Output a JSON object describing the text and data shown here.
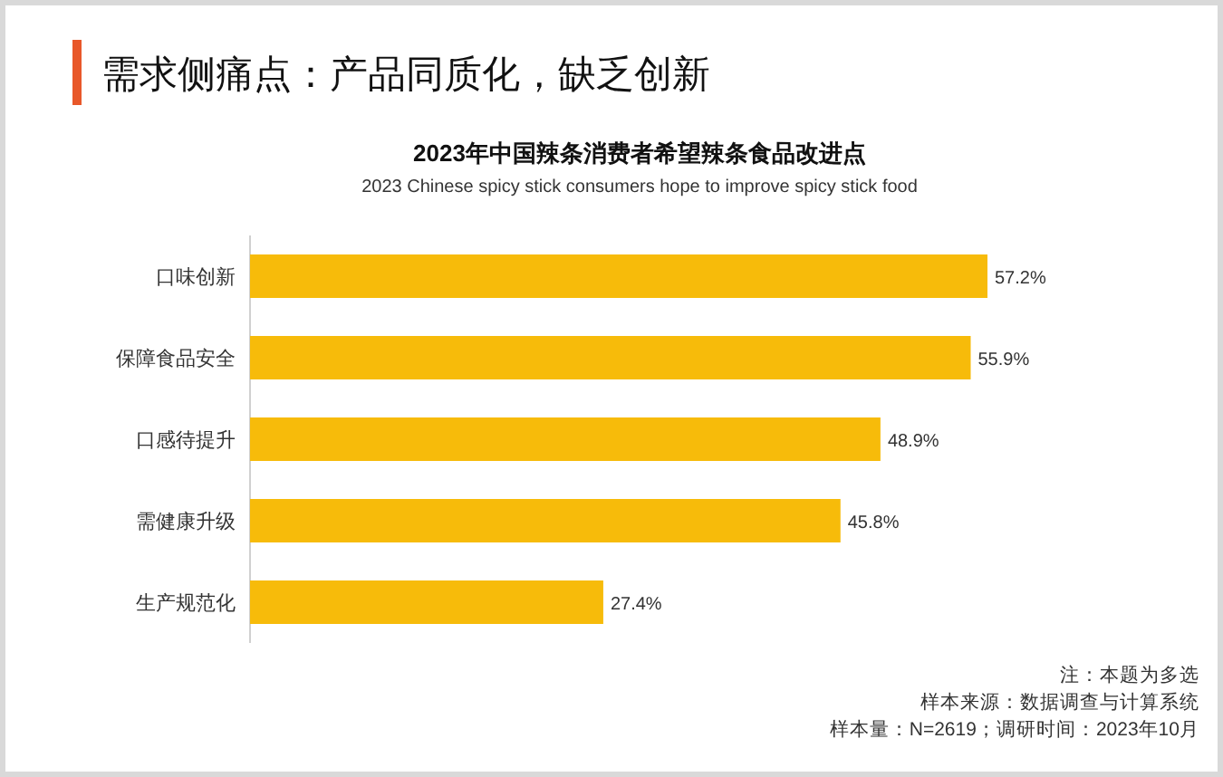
{
  "chart_data": {
    "type": "bar",
    "orientation": "horizontal",
    "title": "需求侧痛点：产品同质化，缺乏创新",
    "subtitle": "2023年中国辣条消费者希望辣条食品改进点",
    "categories": [
      "口味创新",
      "保障食品安全",
      "口感待提升",
      "需健康升级",
      "生产规范化"
    ],
    "values": [
      57.2,
      55.9,
      48.9,
      45.8,
      27.4
    ],
    "value_labels": [
      "57.2%",
      "55.9%",
      "48.9%",
      "45.8%",
      "27.4%"
    ],
    "color": "#f7bb0a",
    "annotations": [
      "2023 Chinese spicy stick consumers hope to improve spicy stick food",
      "注：本题为多选",
      "样本来源：数据调查与计算系统",
      "样本量：N=2619；调研时间：2023年10月"
    ]
  }
}
